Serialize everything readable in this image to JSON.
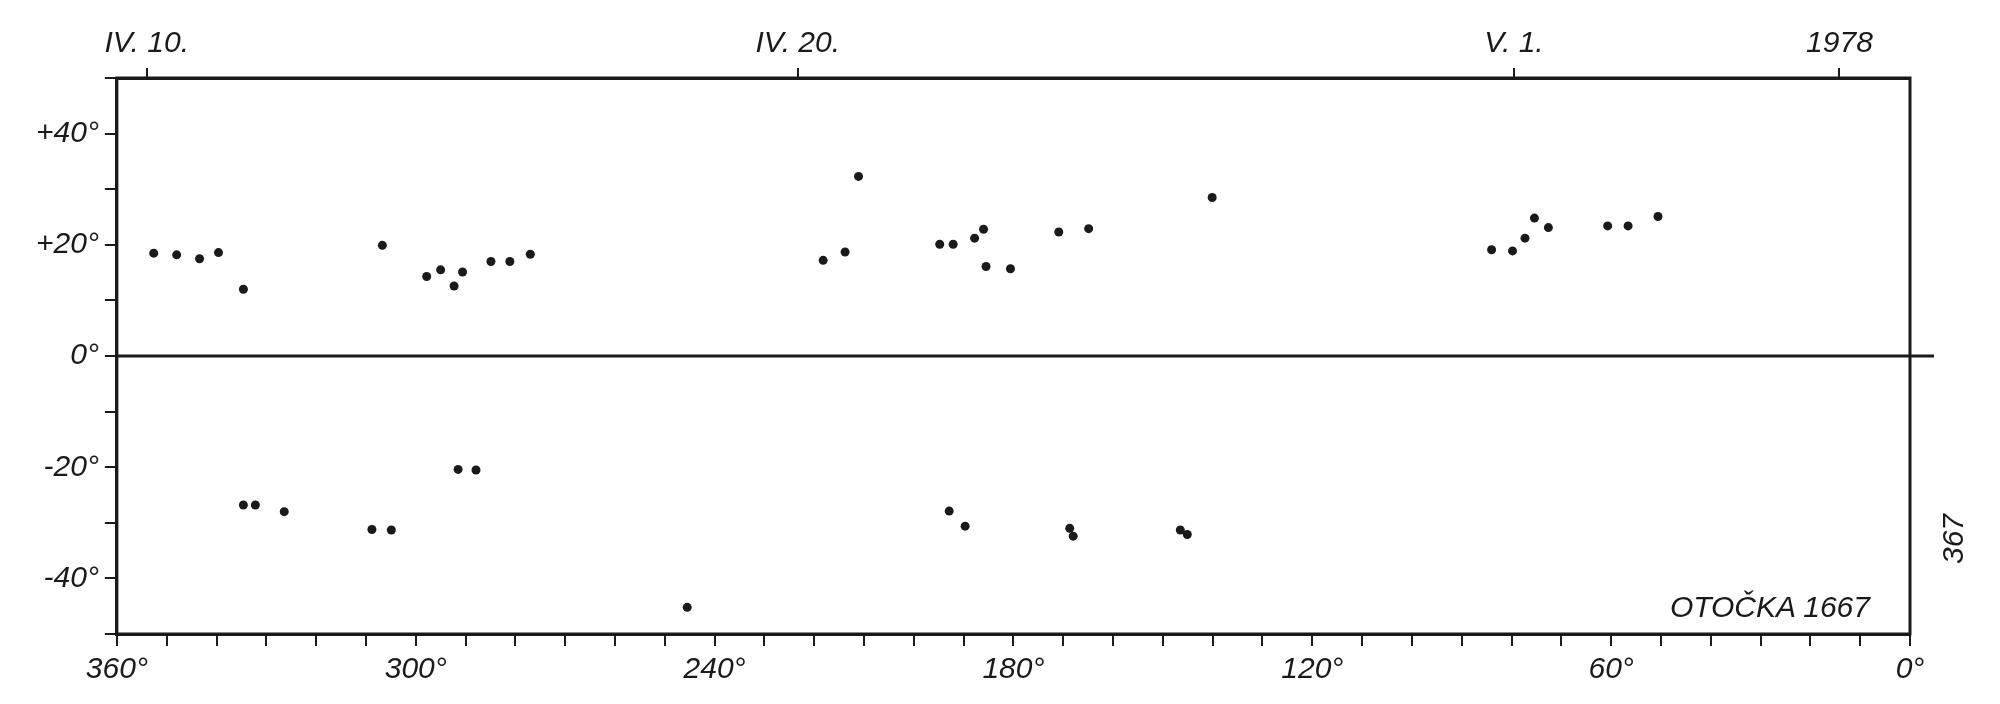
{
  "chart_data": {
    "type": "scatter",
    "x": [
      352.6,
      348.0,
      343.4,
      339.6,
      334.6,
      306.7,
      297.8,
      295.0,
      292.3,
      290.6,
      284.9,
      281.1,
      277.0,
      334.6,
      332.2,
      326.4,
      308.8,
      304.9,
      291.5,
      287.9,
      245.5,
      211.1,
      218.2,
      213.8,
      194.8,
      192.1,
      187.8,
      186.0,
      185.5,
      180.6,
      170.9,
      164.9,
      140.1,
      192.9,
      189.7,
      168.7,
      168.0,
      146.5,
      145.1,
      84.0,
      79.8,
      77.3,
      75.4,
      72.6,
      60.7,
      56.6,
      50.6
    ],
    "values": [
      18.5,
      18.2,
      17.5,
      18.6,
      12,
      19.9,
      14.3,
      15.5,
      12.6,
      15.1,
      17,
      17,
      18.3,
      -26.8,
      -26.8,
      -28,
      -31.2,
      -31.3,
      -20.4,
      -20.5,
      -45.2,
      32.3,
      17.2,
      18.7,
      20.1,
      20.1,
      21.2,
      22.8,
      16.1,
      15.7,
      22.3,
      22.9,
      28.5,
      -27.9,
      -30.6,
      -31,
      -32.4,
      -31.3,
      -32.1,
      19.1,
      18.9,
      21.2,
      24.8,
      23.1,
      23.4,
      23.4,
      25.1
    ],
    "color": "#1a1a1a",
    "marker": "circle",
    "grid": false,
    "legend": false,
    "xlim": [
      360,
      0
    ],
    "xticks": [
      {
        "value": 360,
        "label": "360°"
      },
      {
        "value": 350,
        "label": null
      },
      {
        "value": 340,
        "label": null
      },
      {
        "value": 330,
        "label": null
      },
      {
        "value": 320,
        "label": null
      },
      {
        "value": 310,
        "label": null
      },
      {
        "value": 300,
        "label": "300°"
      },
      {
        "value": 290,
        "label": null
      },
      {
        "value": 280,
        "label": null
      },
      {
        "value": 270,
        "label": null
      },
      {
        "value": 260,
        "label": null
      },
      {
        "value": 250,
        "label": null
      },
      {
        "value": 240,
        "label": "240°"
      },
      {
        "value": 230,
        "label": null
      },
      {
        "value": 220,
        "label": null
      },
      {
        "value": 210,
        "label": null
      },
      {
        "value": 200,
        "label": null
      },
      {
        "value": 190,
        "label": null
      },
      {
        "value": 180,
        "label": "180°"
      },
      {
        "value": 170,
        "label": null
      },
      {
        "value": 160,
        "label": null
      },
      {
        "value": 150,
        "label": null
      },
      {
        "value": 140,
        "label": null
      },
      {
        "value": 130,
        "label": null
      },
      {
        "value": 120,
        "label": "120°"
      },
      {
        "value": 110,
        "label": null
      },
      {
        "value": 100,
        "label": null
      },
      {
        "value": 90,
        "label": null
      },
      {
        "value": 80,
        "label": null
      },
      {
        "value": 70,
        "label": null
      },
      {
        "value": 60,
        "label": "60°"
      },
      {
        "value": 50,
        "label": null
      },
      {
        "value": 40,
        "label": null
      },
      {
        "value": 30,
        "label": null
      },
      {
        "value": 20,
        "label": null
      },
      {
        "value": 10,
        "label": null
      },
      {
        "value": 0,
        "label": "0°"
      }
    ],
    "x2lim": [
      "1978-04-09T13:00",
      "1978-05-07T02:00"
    ],
    "x2ticks": [
      {
        "value": "1978-04-10",
        "label": "IV. 10."
      },
      {
        "value": "1978-04-20",
        "label": "IV. 20."
      },
      {
        "value": "1978-05-01",
        "label": "V. 1."
      },
      {
        "value": "1978-05-06",
        "label": "1978"
      }
    ],
    "ylim": [
      -50,
      50
    ],
    "yticks": [
      {
        "value": -50,
        "label": null
      },
      {
        "value": -40,
        "label": "-40°"
      },
      {
        "value": -30,
        "label": null
      },
      {
        "value": -20,
        "label": "-20°"
      },
      {
        "value": -10,
        "label": null
      },
      {
        "value": 0,
        "label": "0°"
      },
      {
        "value": 10,
        "label": null
      },
      {
        "value": 20,
        "label": "+20°"
      },
      {
        "value": 30,
        "label": null
      },
      {
        "value": 40,
        "label": "+40°"
      },
      {
        "value": 50,
        "label": null
      }
    ],
    "ref_lines": [
      {
        "axis": "y",
        "value": 0,
        "label": null,
        "color": "#1a1a1a"
      }
    ],
    "annotations": [
      "OTOČKA 1667",
      "367"
    ]
  }
}
